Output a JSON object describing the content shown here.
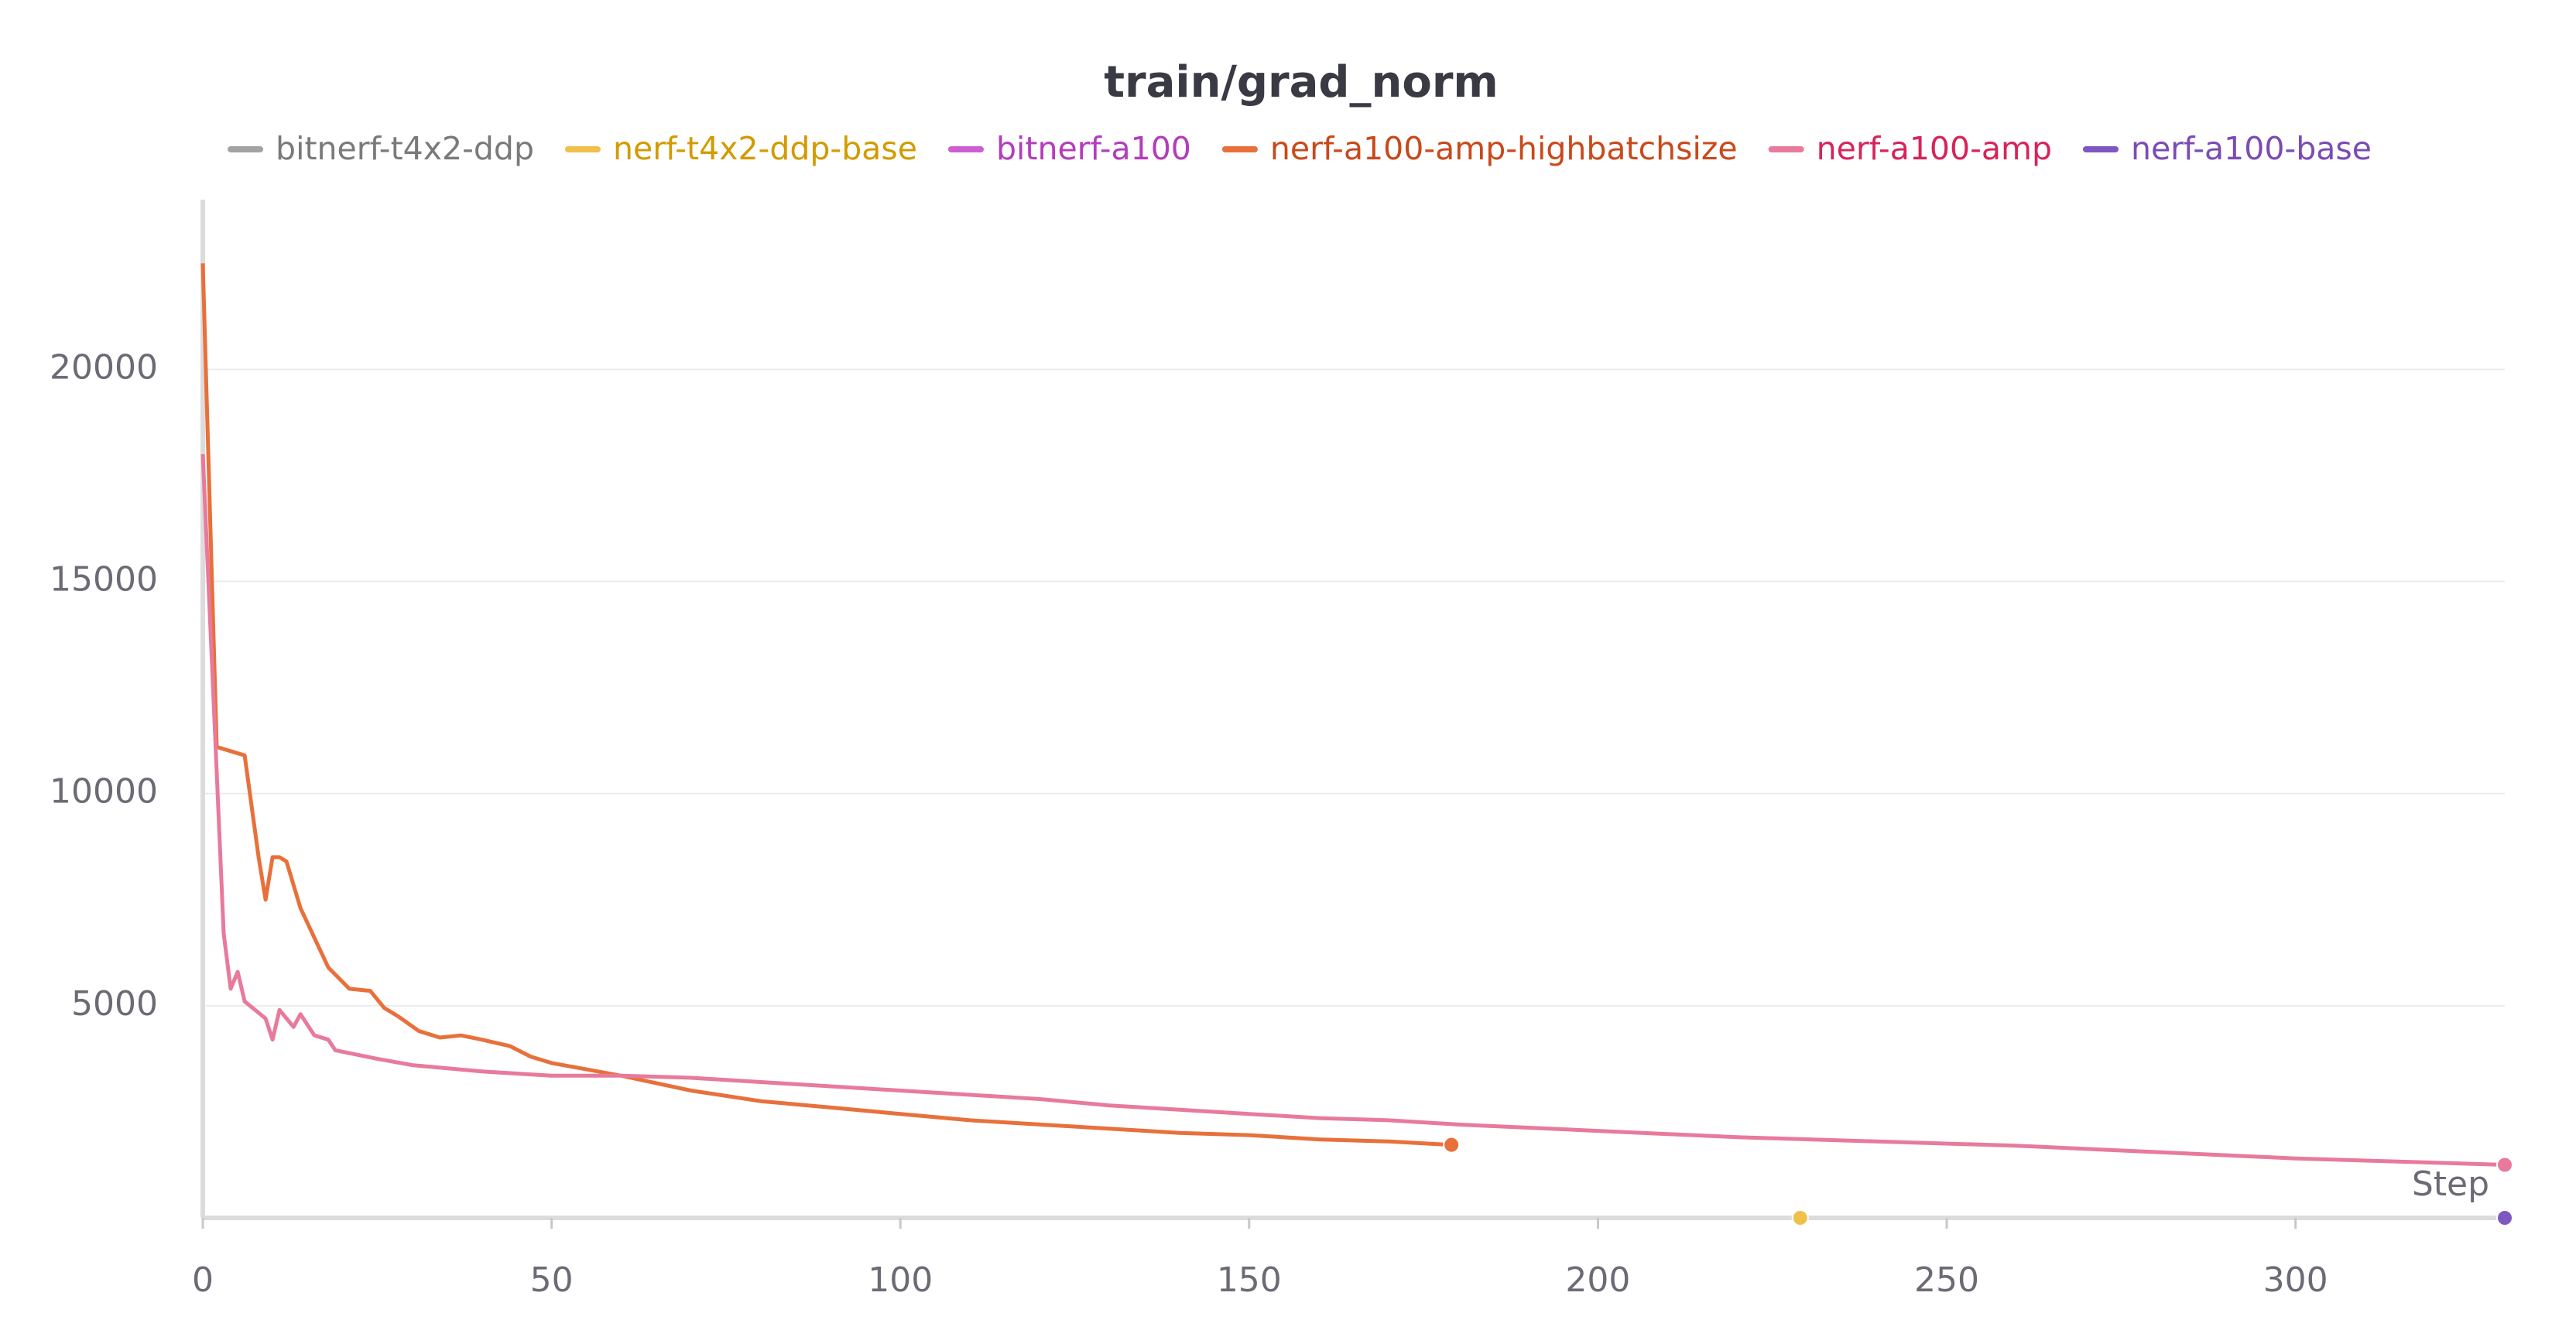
{
  "chart_data": {
    "type": "line",
    "title": "train/grad_norm",
    "x_label": "Step",
    "xlim": [
      0,
      330
    ],
    "xticks": [
      0,
      50,
      100,
      150,
      200,
      250,
      300
    ],
    "ylim": [
      0,
      24000
    ],
    "yticks": [
      5000,
      10000,
      15000,
      20000
    ],
    "grid": true,
    "series": [
      {
        "name": "bitnerf-t4x2-ddp",
        "color": "#a3a3a3",
        "text_color": "#7a7a7a",
        "x": [],
        "values": []
      },
      {
        "name": "nerf-t4x2-ddp-base",
        "color": "#f0c04a",
        "text_color": "#d29b00",
        "x": [
          229
        ],
        "values": [
          0
        ]
      },
      {
        "name": "bitnerf-a100",
        "color": "#cc5ed2",
        "text_color": "#b43cbc",
        "x": [],
        "values": []
      },
      {
        "name": "nerf-a100-amp-highbatchsize",
        "color": "#e8703a",
        "text_color": "#c8491a",
        "x": [
          0,
          2,
          6,
          8,
          9,
          10,
          11,
          12,
          14,
          18,
          21,
          24,
          26,
          28,
          31,
          34,
          37,
          40,
          44,
          47,
          50,
          55,
          60,
          70,
          80,
          90,
          100,
          110,
          120,
          130,
          140,
          150,
          160,
          170,
          179
        ],
        "values": [
          22500,
          11100,
          10900,
          8500,
          7500,
          8500,
          8500,
          8400,
          7300,
          5900,
          5400,
          5350,
          4950,
          4750,
          4400,
          4250,
          4300,
          4200,
          4050,
          3800,
          3650,
          3500,
          3350,
          3000,
          2750,
          2600,
          2450,
          2300,
          2200,
          2100,
          2000,
          1950,
          1850,
          1800,
          1720
        ]
      },
      {
        "name": "nerf-a100-amp",
        "color": "#e87a9c",
        "text_color": "#d6245a",
        "x": [
          0,
          2,
          3,
          4,
          5,
          6,
          9,
          10,
          11,
          13,
          14,
          16,
          18,
          19,
          22,
          25,
          30,
          40,
          50,
          60,
          70,
          80,
          90,
          100,
          110,
          120,
          130,
          140,
          150,
          160,
          170,
          180,
          200,
          220,
          240,
          260,
          280,
          300,
          330
        ],
        "values": [
          18000,
          10500,
          6700,
          5400,
          5800,
          5100,
          4700,
          4200,
          4900,
          4500,
          4800,
          4300,
          4200,
          3950,
          3850,
          3750,
          3600,
          3450,
          3350,
          3350,
          3300,
          3200,
          3100,
          3000,
          2900,
          2800,
          2650,
          2550,
          2450,
          2350,
          2300,
          2200,
          2050,
          1900,
          1800,
          1700,
          1550,
          1400,
          1250
        ]
      },
      {
        "name": "nerf-a100-base",
        "color": "#7e57c2",
        "text_color": "#7b4bb5",
        "x": [
          330
        ],
        "values": [
          0
        ]
      }
    ]
  }
}
